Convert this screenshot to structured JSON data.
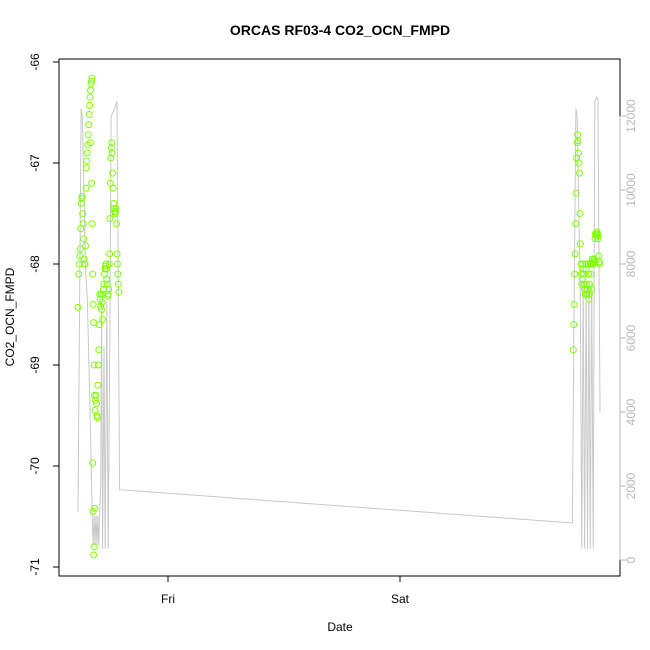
{
  "chart_data": {
    "type": "scatter",
    "title": "ORCAS RF03-4 CO2_OCN_FMPD",
    "xlabel": "Date",
    "ylabel": "CO2_OCN_FMPD",
    "ylim": [
      -71,
      -66
    ],
    "y_ticks": [
      -66,
      -67,
      -68,
      -69,
      -70,
      -71
    ],
    "y_tick_labels": [
      "-66",
      "-67",
      "-68",
      "-69",
      "-70",
      "-71"
    ],
    "y2_ticks": [
      0,
      2000,
      4000,
      6000,
      8000,
      10000,
      12000
    ],
    "y2_tick_labels": [
      "0",
      "2000",
      "4000",
      "6000",
      "8000",
      "10000",
      "12000"
    ],
    "y2lim": [
      -300,
      13400
    ],
    "x_ticks": [
      "Fri",
      "Sat"
    ],
    "grid": false,
    "colors": {
      "points": "#7fff00",
      "altitude_line": "#c8c8c8",
      "axis": "#000000",
      "right_axis": "#b8b8b8"
    },
    "series": [
      {
        "kind": "points",
        "points": [
          [
            0.0,
            -68.43
          ],
          [
            0.3,
            -68.1
          ],
          [
            0.5,
            -68.0
          ],
          [
            0.8,
            -67.92
          ],
          [
            1.0,
            -67.85
          ],
          [
            1.2,
            -67.65
          ],
          [
            1.4,
            -67.4
          ],
          [
            1.6,
            -67.35
          ],
          [
            1.8,
            -67.33
          ],
          [
            2.0,
            -67.5
          ],
          [
            2.2,
            -67.6
          ],
          [
            2.4,
            -67.75
          ],
          [
            2.6,
            -67.95
          ],
          [
            2.8,
            -68.0
          ],
          [
            3.0,
            -68.0
          ],
          [
            3.2,
            -67.82
          ],
          [
            3.4,
            -67.25
          ],
          [
            3.5,
            -67.05
          ],
          [
            3.7,
            -66.98
          ],
          [
            3.9,
            -66.9
          ],
          [
            4.1,
            -66.82
          ],
          [
            4.3,
            -66.72
          ],
          [
            4.5,
            -66.62
          ],
          [
            4.7,
            -66.52
          ],
          [
            4.9,
            -66.43
          ],
          [
            5.1,
            -66.35
          ],
          [
            5.3,
            -66.28
          ],
          [
            5.5,
            -66.22
          ],
          [
            5.7,
            -66.19
          ],
          [
            5.9,
            -66.16
          ],
          [
            5.2,
            -66.8
          ],
          [
            5.8,
            -67.2
          ],
          [
            6.0,
            -67.6
          ],
          [
            6.2,
            -68.1
          ],
          [
            6.4,
            -68.4
          ],
          [
            6.6,
            -68.58
          ],
          [
            6.8,
            -69.0
          ],
          [
            7.0,
            -69.3
          ],
          [
            6.2,
            -69.97
          ],
          [
            6.4,
            -70.45
          ],
          [
            6.6,
            -70.88
          ],
          [
            6.8,
            -70.8
          ],
          [
            7.0,
            -70.42
          ],
          [
            7.2,
            -69.45
          ],
          [
            7.4,
            -69.35
          ],
          [
            7.6,
            -69.3
          ],
          [
            7.8,
            -69.38
          ],
          [
            8.0,
            -69.5
          ],
          [
            8.2,
            -69.52
          ],
          [
            8.4,
            -69.2
          ],
          [
            8.6,
            -69.0
          ],
          [
            8.8,
            -68.85
          ],
          [
            9.0,
            -68.6
          ],
          [
            9.2,
            -68.3
          ],
          [
            9.4,
            -68.35
          ],
          [
            9.6,
            -68.42
          ],
          [
            9.8,
            -68.3
          ],
          [
            10.0,
            -68.45
          ],
          [
            10.2,
            -68.38
          ],
          [
            10.4,
            -68.55
          ],
          [
            10.6,
            -68.3
          ],
          [
            10.8,
            -68.25
          ],
          [
            11.0,
            -68.2
          ],
          [
            11.2,
            -68.1
          ],
          [
            11.4,
            -68.05
          ],
          [
            11.6,
            -68.02
          ],
          [
            11.8,
            -68.0
          ],
          [
            12.0,
            -68.05
          ],
          [
            12.2,
            -68.15
          ],
          [
            12.4,
            -68.2
          ],
          [
            12.6,
            -68.32
          ],
          [
            12.8,
            -68.3
          ],
          [
            13.0,
            -68.25
          ],
          [
            13.2,
            -68.0
          ],
          [
            13.4,
            -67.9
          ],
          [
            13.5,
            -67.55
          ],
          [
            13.7,
            -67.2
          ],
          [
            13.9,
            -66.95
          ],
          [
            14.1,
            -66.85
          ],
          [
            14.3,
            -66.8
          ],
          [
            14.5,
            -66.9
          ],
          [
            14.7,
            -67.1
          ],
          [
            14.9,
            -67.25
          ],
          [
            15.1,
            -67.4
          ],
          [
            15.3,
            -67.45
          ],
          [
            15.5,
            -67.48
          ],
          [
            15.7,
            -67.5
          ],
          [
            15.9,
            -67.48
          ],
          [
            16.1,
            -67.45
          ],
          [
            16.3,
            -67.6
          ],
          [
            16.5,
            -67.9
          ],
          [
            16.7,
            -68.0
          ],
          [
            16.9,
            -68.1
          ],
          [
            17.1,
            -68.2
          ],
          [
            17.3,
            -68.28
          ],
          [
            209.7,
            -68.85
          ],
          [
            209.9,
            -68.6
          ],
          [
            210.1,
            -68.4
          ],
          [
            210.3,
            -68.1
          ],
          [
            210.5,
            -67.9
          ],
          [
            210.7,
            -67.6
          ],
          [
            210.9,
            -67.3
          ],
          [
            211.1,
            -66.95
          ],
          [
            211.3,
            -66.8
          ],
          [
            211.5,
            -66.72
          ],
          [
            211.7,
            -66.78
          ],
          [
            211.9,
            -66.9
          ],
          [
            212.1,
            -67.0
          ],
          [
            212.3,
            -67.1
          ],
          [
            212.5,
            -67.5
          ],
          [
            212.7,
            -67.8
          ],
          [
            212.9,
            -68.0
          ],
          [
            213.1,
            -68.1
          ],
          [
            213.3,
            -68.2
          ],
          [
            213.5,
            -68.15
          ],
          [
            213.7,
            -68.0
          ],
          [
            213.9,
            -68.05
          ],
          [
            214.1,
            -68.1
          ],
          [
            214.3,
            -68.2
          ],
          [
            214.5,
            -68.25
          ],
          [
            214.7,
            -68.3
          ],
          [
            214.9,
            -68.0
          ],
          [
            215.1,
            -68.05
          ],
          [
            215.3,
            -68.2
          ],
          [
            215.5,
            -68.3
          ],
          [
            215.7,
            -68.25
          ],
          [
            215.9,
            -68.0
          ],
          [
            216.1,
            -68.1
          ],
          [
            216.3,
            -68.35
          ],
          [
            216.5,
            -68.3
          ],
          [
            216.7,
            -68.2
          ],
          [
            216.9,
            -68.0
          ],
          [
            217.1,
            -68.1
          ],
          [
            217.3,
            -68.25
          ],
          [
            217.5,
            -68.0
          ],
          [
            217.7,
            -67.95
          ],
          [
            217.9,
            -67.98
          ],
          [
            218.1,
            -68.0
          ],
          [
            218.3,
            -67.96
          ],
          [
            218.5,
            -67.95
          ],
          [
            218.7,
            -67.98
          ],
          [
            218.9,
            -67.75
          ],
          [
            219.1,
            -67.7
          ],
          [
            219.3,
            -67.72
          ],
          [
            219.5,
            -67.7
          ],
          [
            219.7,
            -67.68
          ],
          [
            219.9,
            -67.7
          ],
          [
            220.1,
            -67.75
          ],
          [
            220.3,
            -67.72
          ],
          [
            220.5,
            -67.92
          ],
          [
            220.7,
            -67.98
          ],
          [
            220.9,
            -68.0
          ]
        ]
      },
      {
        "kind": "altitude",
        "points": [
          [
            0.0,
            1300
          ],
          [
            1.3,
            12200
          ],
          [
            1.8,
            12000
          ],
          [
            2.6,
            9800
          ],
          [
            3.1,
            8000
          ],
          [
            4.0,
            7000
          ],
          [
            5.3,
            3500
          ],
          [
            6.0,
            1200
          ],
          [
            6.4,
            400
          ],
          [
            6.8,
            1200
          ],
          [
            7.2,
            400
          ],
          [
            7.6,
            1200
          ],
          [
            8.0,
            400
          ],
          [
            8.4,
            1200
          ],
          [
            8.8,
            400
          ],
          [
            9.2,
            1200
          ],
          [
            9.6,
            2000
          ],
          [
            10.0,
            7000
          ],
          [
            10.4,
            300
          ],
          [
            11.0,
            5800
          ],
          [
            11.5,
            300
          ],
          [
            12.2,
            7000
          ],
          [
            12.8,
            300
          ],
          [
            13.5,
            6200
          ],
          [
            14.0,
            12000
          ],
          [
            15.5,
            12200
          ],
          [
            16.5,
            12400
          ],
          [
            17.6,
            1900
          ],
          [
            209.3,
            1000
          ],
          [
            209.9,
            6000
          ],
          [
            210.8,
            12200
          ],
          [
            211.3,
            12000
          ],
          [
            212.0,
            9500
          ],
          [
            212.6,
            7500
          ],
          [
            213.3,
            300
          ],
          [
            213.9,
            7500
          ],
          [
            214.5,
            300
          ],
          [
            215.1,
            7500
          ],
          [
            215.7,
            300
          ],
          [
            216.3,
            7500
          ],
          [
            216.9,
            300
          ],
          [
            217.5,
            7500
          ],
          [
            218.1,
            300
          ],
          [
            218.8,
            12400
          ],
          [
            219.5,
            12500
          ],
          [
            220.1,
            12450
          ],
          [
            221.0,
            4000
          ]
        ]
      }
    ]
  }
}
